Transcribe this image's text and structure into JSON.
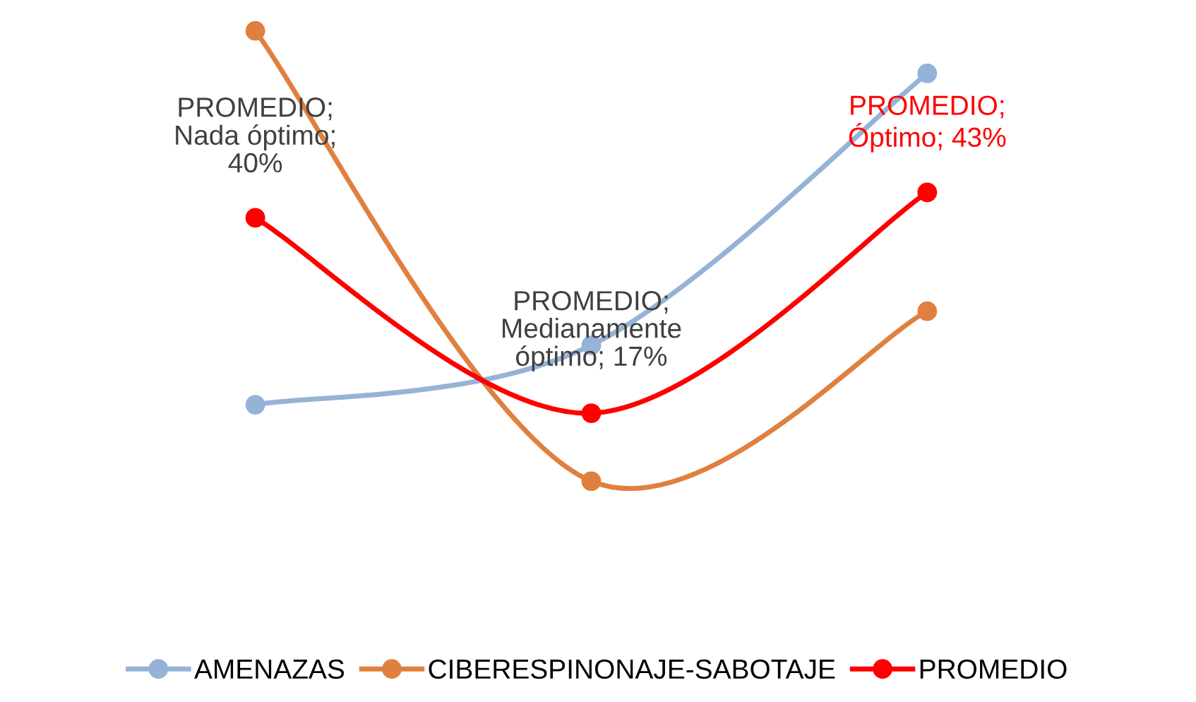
{
  "chart_data": {
    "type": "line",
    "categories": [
      null,
      null,
      null
    ],
    "grid": false,
    "legend": "bottom",
    "marker": "circle",
    "line_style": "solid",
    "series": [
      {
        "name": "AMENAZAS",
        "color": "#95b3d7",
        "values": [
          18,
          25,
          57
        ]
      },
      {
        "name": "CIBERESPINONAJE-SABOTAJE",
        "color": "#e0803f",
        "values": [
          62,
          9,
          29
        ]
      },
      {
        "name": "PROMEDIO",
        "color": "#ff0000",
        "values": [
          40,
          17,
          43
        ],
        "value_labels": [
          "PROMEDIO;\nNada óptimo;\n40%",
          "PROMEDIO;\nMedianamente\nóptimo; 17%",
          "PROMEDIO;\nÓptimo; 43%"
        ]
      }
    ]
  }
}
